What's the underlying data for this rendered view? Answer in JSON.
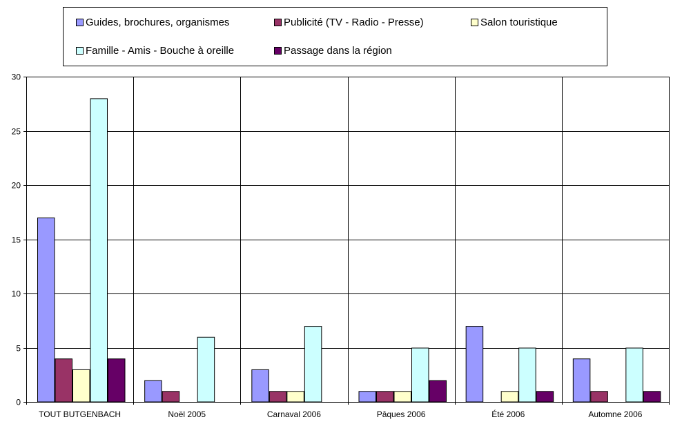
{
  "chart_data": {
    "type": "bar",
    "title": "",
    "xlabel": "",
    "ylabel": "",
    "ylim": [
      0,
      30
    ],
    "yticks": [
      0,
      5,
      10,
      15,
      20,
      25,
      30
    ],
    "grid": "horizontal and vertical",
    "legend_position": "top",
    "categories": [
      "TOUT BUTGENBACH",
      "Noël 2005",
      "Carnaval 2006",
      "Pâques 2006",
      "Été 2006",
      "Automne 2006"
    ],
    "series": [
      {
        "name": "Guides, brochures, organismes",
        "color": "#9999FF",
        "values": [
          17,
          2,
          3,
          1,
          7,
          4
        ]
      },
      {
        "name": "Publicité (TV - Radio - Presse)",
        "color": "#993366",
        "values": [
          4,
          1,
          1,
          1,
          0,
          1
        ]
      },
      {
        "name": "Salon touristique",
        "color": "#FFFFCC",
        "values": [
          3,
          0,
          1,
          1,
          1,
          0
        ]
      },
      {
        "name": "Famille - Amis - Bouche à oreille",
        "color": "#CCFFFF",
        "values": [
          28,
          6,
          7,
          5,
          5,
          5
        ]
      },
      {
        "name": "Passage dans la région",
        "color": "#660066",
        "values": [
          4,
          0,
          0,
          2,
          1,
          1
        ]
      }
    ]
  }
}
